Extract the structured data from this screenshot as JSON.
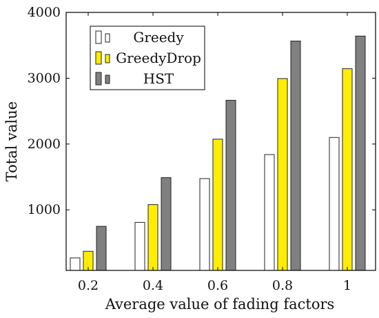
{
  "chart_data": {
    "type": "bar",
    "categories": [
      "0.2",
      "0.4",
      "0.6",
      "0.8",
      "1"
    ],
    "series": [
      {
        "name": "Greedy",
        "values": [
          270,
          810,
          1475,
          1840,
          2100
        ],
        "color": "#ffffff"
      },
      {
        "name": "GreedyDrop",
        "values": [
          370,
          1080,
          2075,
          2995,
          3145
        ],
        "color": "#ffee00"
      },
      {
        "name": "HST",
        "values": [
          750,
          1490,
          2665,
          3565,
          3640
        ],
        "color": "#808080"
      }
    ],
    "xlabel": "Average value of fading factors",
    "ylabel": "Total value",
    "ylim": [
      80,
      4000
    ],
    "yticks": [
      1000,
      2000,
      3000,
      4000
    ],
    "grid": false,
    "legend_position": "top-left"
  }
}
